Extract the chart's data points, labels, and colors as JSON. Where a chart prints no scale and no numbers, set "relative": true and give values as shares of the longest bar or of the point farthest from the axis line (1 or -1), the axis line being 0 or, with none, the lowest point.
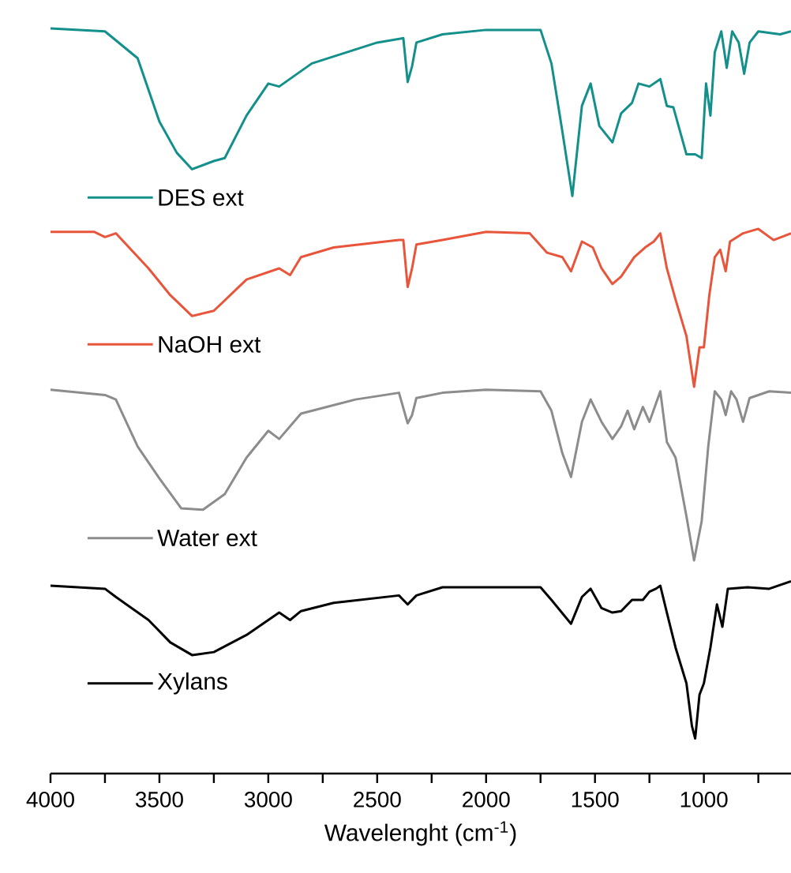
{
  "chart_data": {
    "type": "line",
    "xlabel": "Wavelenght (cm$^{-1}$)",
    "xlim": [
      4000,
      600
    ],
    "relative": true,
    "legend": "left",
    "xticks": [
      4000,
      {
        "value": 3750,
        "label": null
      },
      3500,
      {
        "value": 3250,
        "label": null
      },
      3000,
      {
        "value": 2750,
        "label": null
      },
      2500,
      {
        "value": 2250,
        "label": null
      },
      2000,
      {
        "value": 1750,
        "label": null
      },
      1500,
      {
        "value": 1250,
        "label": null
      },
      1000,
      {
        "value": 750,
        "label": null
      }
    ],
    "series": [
      {
        "name": "DES ext",
        "color": "#14908c",
        "x": [
          4000,
          3750,
          3600,
          3500,
          3420,
          3350,
          3250,
          3200,
          3100,
          3000,
          2950,
          2800,
          2500,
          2380,
          2360,
          2340,
          2320,
          2200,
          2000,
          1750,
          1700,
          1650,
          1604,
          1560,
          1520,
          1480,
          1420,
          1380,
          1330,
          1300,
          1250,
          1200,
          1170,
          1140,
          1080,
          1040,
          1010,
          990,
          970,
          950,
          920,
          895,
          870,
          840,
          815,
          790,
          750,
          650,
          600
        ],
        "values": [
          1.0,
          0.996,
          0.96,
          0.875,
          0.833,
          0.811,
          0.822,
          0.826,
          0.883,
          0.926,
          0.922,
          0.953,
          0.981,
          0.987,
          0.928,
          0.949,
          0.981,
          0.992,
          0.998,
          0.998,
          0.953,
          0.862,
          0.775,
          0.896,
          0.926,
          0.869,
          0.847,
          0.886,
          0.9,
          0.926,
          0.922,
          0.932,
          0.896,
          0.894,
          0.831,
          0.831,
          0.826,
          0.926,
          0.883,
          0.968,
          0.996,
          0.947,
          0.996,
          0.981,
          0.939,
          0.981,
          0.996,
          0.992,
          0.996
        ]
      },
      {
        "name": "NaOH ext",
        "color": "#e8553a",
        "x": [
          4000,
          3800,
          3750,
          3700,
          3550,
          3450,
          3350,
          3250,
          3100,
          2950,
          2900,
          2850,
          2700,
          2400,
          2380,
          2360,
          2340,
          2320,
          2200,
          2000,
          1800,
          1720,
          1650,
          1610,
          1560,
          1510,
          1470,
          1420,
          1380,
          1320,
          1270,
          1230,
          1200,
          1170,
          1130,
          1080,
          1045,
          1020,
          1000,
          975,
          950,
          925,
          900,
          880,
          820,
          750,
          680,
          600
        ],
        "values": [
          0.727,
          0.727,
          0.72,
          0.725,
          0.678,
          0.642,
          0.614,
          0.621,
          0.663,
          0.678,
          0.669,
          0.693,
          0.706,
          0.716,
          0.716,
          0.653,
          0.678,
          0.71,
          0.716,
          0.727,
          0.725,
          0.699,
          0.693,
          0.674,
          0.714,
          0.706,
          0.678,
          0.657,
          0.667,
          0.693,
          0.706,
          0.714,
          0.725,
          0.678,
          0.636,
          0.587,
          0.519,
          0.572,
          0.572,
          0.642,
          0.693,
          0.703,
          0.674,
          0.714,
          0.725,
          0.731,
          0.716,
          0.725
        ]
      },
      {
        "name": "Water ext",
        "color": "#8c8c8c",
        "x": [
          4000,
          3750,
          3700,
          3600,
          3500,
          3400,
          3300,
          3200,
          3100,
          3000,
          2950,
          2850,
          2600,
          2400,
          2360,
          2340,
          2320,
          2200,
          2000,
          1750,
          1700,
          1650,
          1610,
          1560,
          1520,
          1470,
          1420,
          1380,
          1350,
          1320,
          1280,
          1250,
          1200,
          1170,
          1130,
          1080,
          1045,
          1010,
          980,
          950,
          920,
          900,
          875,
          850,
          820,
          790,
          700,
          600
        ],
        "values": [
          0.515,
          0.508,
          0.502,
          0.439,
          0.396,
          0.356,
          0.354,
          0.375,
          0.424,
          0.46,
          0.449,
          0.483,
          0.502,
          0.511,
          0.47,
          0.481,
          0.504,
          0.511,
          0.515,
          0.513,
          0.487,
          0.43,
          0.398,
          0.472,
          0.502,
          0.472,
          0.449,
          0.466,
          0.487,
          0.462,
          0.492,
          0.472,
          0.513,
          0.445,
          0.424,
          0.345,
          0.286,
          0.339,
          0.439,
          0.513,
          0.502,
          0.481,
          0.513,
          0.502,
          0.472,
          0.504,
          0.513,
          0.511
        ]
      },
      {
        "name": "Xylans",
        "color": "#000000",
        "x": [
          4000,
          3750,
          3700,
          3550,
          3450,
          3350,
          3250,
          3100,
          2950,
          2900,
          2850,
          2700,
          2400,
          2360,
          2320,
          2200,
          2000,
          1750,
          1700,
          1610,
          1560,
          1520,
          1470,
          1420,
          1380,
          1330,
          1280,
          1250,
          1220,
          1200,
          1170,
          1130,
          1080,
          1055,
          1040,
          1020,
          1000,
          970,
          940,
          915,
          890,
          800,
          700,
          600
        ],
        "values": [
          0.252,
          0.248,
          0.237,
          0.206,
          0.176,
          0.159,
          0.163,
          0.186,
          0.216,
          0.206,
          0.218,
          0.229,
          0.239,
          0.227,
          0.239,
          0.25,
          0.25,
          0.25,
          0.233,
          0.201,
          0.237,
          0.248,
          0.222,
          0.216,
          0.218,
          0.233,
          0.233,
          0.244,
          0.248,
          0.252,
          0.216,
          0.169,
          0.121,
          0.064,
          0.047,
          0.106,
          0.121,
          0.169,
          0.227,
          0.197,
          0.248,
          0.25,
          0.248,
          0.258
        ]
      }
    ]
  }
}
